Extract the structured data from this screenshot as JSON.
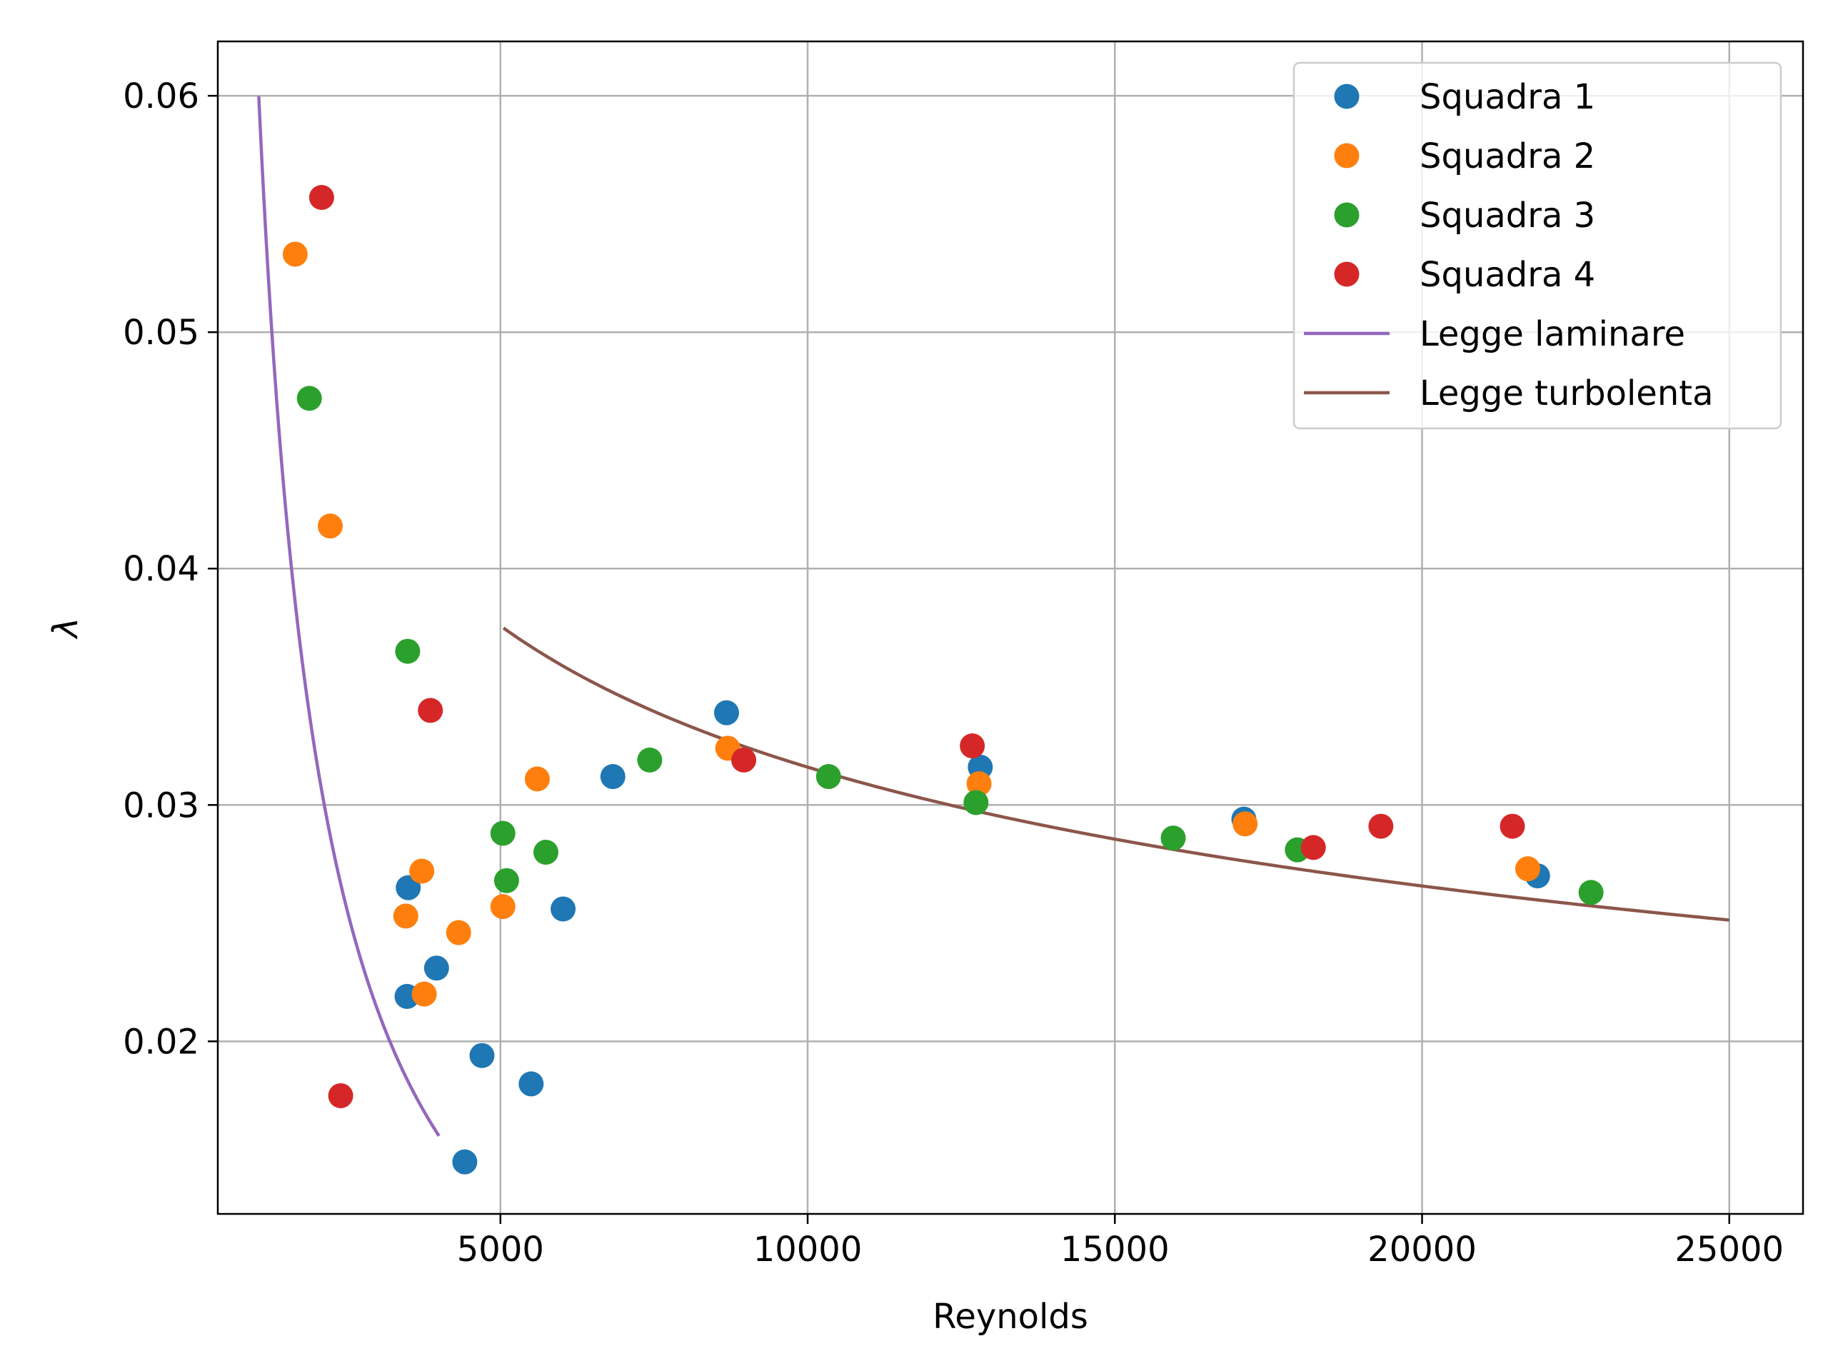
{
  "chart_data": {
    "type": "scatter",
    "title": "",
    "xlabel": "Reynolds",
    "ylabel": "λ",
    "xlim": [
      400,
      26200
    ],
    "ylim": [
      0.0127,
      0.0623
    ],
    "xticks": [
      5000,
      10000,
      15000,
      20000,
      25000
    ],
    "yticks": [
      0.02,
      0.03,
      0.04,
      0.05,
      0.06
    ],
    "xtick_labels": [
      "5000",
      "10000",
      "15000",
      "20000",
      "25000"
    ],
    "ytick_labels": [
      "0.02",
      "0.03",
      "0.04",
      "0.05",
      "0.06"
    ],
    "grid": true,
    "legend_position": "top-right",
    "series": [
      {
        "name": "Squadra 1",
        "color": "#1f77b4",
        "kind": "points",
        "points": [
          [
            3480,
            0.0219
          ],
          [
            3500,
            0.0265
          ],
          [
            3960,
            0.0231
          ],
          [
            4420,
            0.0149
          ],
          [
            4700,
            0.0194
          ],
          [
            5500,
            0.0182
          ],
          [
            6020,
            0.0256
          ],
          [
            6830,
            0.0312
          ],
          [
            8680,
            0.0339
          ],
          [
            12810,
            0.0316
          ],
          [
            17100,
            0.0294
          ],
          [
            21880,
            0.027
          ]
        ]
      },
      {
        "name": "Squadra 2",
        "color": "#ff7f0e",
        "kind": "points",
        "points": [
          [
            1660,
            0.0533
          ],
          [
            2230,
            0.0418
          ],
          [
            3460,
            0.0253
          ],
          [
            3720,
            0.0272
          ],
          [
            3760,
            0.022
          ],
          [
            4320,
            0.0246
          ],
          [
            5040,
            0.0257
          ],
          [
            5600,
            0.0311
          ],
          [
            8700,
            0.0324
          ],
          [
            12790,
            0.0309
          ],
          [
            17120,
            0.0292
          ],
          [
            21720,
            0.0273
          ]
        ]
      },
      {
        "name": "Squadra 3",
        "color": "#2ca02c",
        "kind": "points",
        "points": [
          [
            1890,
            0.0472
          ],
          [
            3490,
            0.0365
          ],
          [
            5040,
            0.0288
          ],
          [
            5100,
            0.0268
          ],
          [
            5740,
            0.028
          ],
          [
            7430,
            0.0319
          ],
          [
            10340,
            0.0312
          ],
          [
            12740,
            0.0301
          ],
          [
            15950,
            0.0286
          ],
          [
            17970,
            0.0281
          ],
          [
            22750,
            0.0263
          ]
        ]
      },
      {
        "name": "Squadra 4",
        "color": "#d62728",
        "kind": "points",
        "points": [
          [
            2090,
            0.0557
          ],
          [
            2400,
            0.0177
          ],
          [
            3860,
            0.034
          ],
          [
            8960,
            0.0319
          ],
          [
            12680,
            0.0325
          ],
          [
            18230,
            0.0282
          ],
          [
            19330,
            0.0291
          ],
          [
            21470,
            0.0291
          ]
        ]
      },
      {
        "name": "Legge laminare",
        "color": "#9467bd",
        "kind": "line",
        "formula": "64/Re",
        "x_range": [
          1067,
          4000
        ]
      },
      {
        "name": "Legge turbolenta",
        "color": "#8c564b",
        "kind": "line",
        "formula": "0.316/Re^0.25",
        "x_range": [
          5050,
          25000
        ]
      }
    ]
  }
}
